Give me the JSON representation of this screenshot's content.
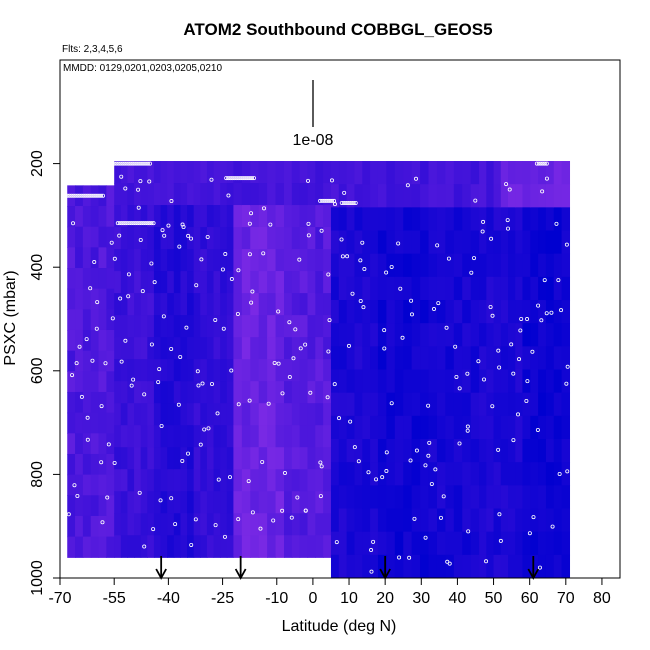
{
  "chart_data": {
    "type": "heatmap",
    "title": "ATOM2 Southbound COBBGL_GEOS5",
    "flights_note": "Flts: 2,3,4,5,6",
    "dates_note": "MMDD: 0129,0201,0203,0205,0210",
    "xlabel": "Latitude (deg N)",
    "ylabel": "PSXC (mbar)",
    "xlim": [
      -70,
      85
    ],
    "ylim": [
      1000,
      0
    ],
    "x_ticks": [
      -70,
      -55,
      -40,
      -25,
      -10,
      0,
      10,
      20,
      30,
      40,
      50,
      60,
      70,
      80
    ],
    "y_ticks": [
      200,
      400,
      600,
      800,
      1000
    ],
    "colorbar_label": "1e-08",
    "colors": {
      "low": "#0000d0",
      "mid": "#3a10d8",
      "high": "#8a30e8"
    },
    "arrow_latitudes": [
      -42,
      -20,
      20,
      61
    ],
    "columns": [
      {
        "lat_min": -68,
        "lat_max": -55,
        "p_top": 242,
        "p_bottom": 960,
        "value": 0.62
      },
      {
        "lat_min": -55,
        "lat_max": -44,
        "p_top": 195,
        "p_bottom": 960,
        "value": 0.48
      },
      {
        "lat_min": -44,
        "lat_max": -33,
        "p_top": 195,
        "p_bottom": 960,
        "value": 0.3
      },
      {
        "lat_min": -33,
        "lat_max": -22,
        "p_top": 195,
        "p_bottom": 960,
        "value": 0.42
      },
      {
        "lat_min": -22,
        "lat_max": -8,
        "p_top": 195,
        "p_bottom": 960,
        "value": 0.8
      },
      {
        "lat_min": -8,
        "lat_max": 5,
        "p_top": 195,
        "p_bottom": 960,
        "value": 0.66
      },
      {
        "lat_min": 5,
        "lat_max": 18,
        "p_top": 195,
        "p_bottom": 1000,
        "value": 0.22
      },
      {
        "lat_min": 18,
        "lat_max": 32,
        "p_top": 195,
        "p_bottom": 1000,
        "value": 0.12
      },
      {
        "lat_min": 32,
        "lat_max": 46,
        "p_top": 195,
        "p_bottom": 1000,
        "value": 0.18
      },
      {
        "lat_min": 46,
        "lat_max": 58,
        "p_top": 195,
        "p_bottom": 1000,
        "value": 0.24
      },
      {
        "lat_min": 58,
        "lat_max": 71,
        "p_top": 195,
        "p_bottom": 1000,
        "value": 0.1
      }
    ],
    "upper_band_value": 0.55,
    "grid": false,
    "legend": "none"
  }
}
